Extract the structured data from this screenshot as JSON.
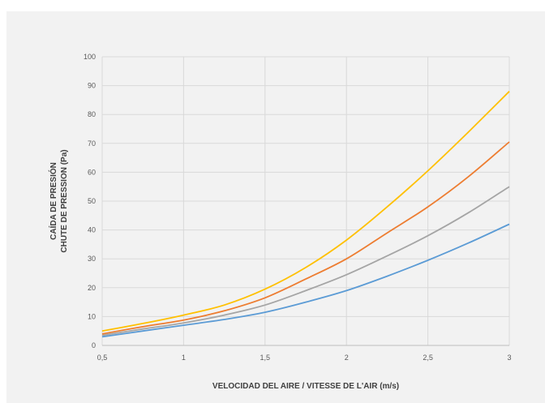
{
  "chart_data": {
    "type": "line",
    "xlabel": "VELOCIDAD DEL AIRE / VITESSE DE L'AIR (m/s)",
    "ylabel_lines": [
      "CAÍDA DE PRESIÓN",
      "CHUTE DE PRESSION (Pa)"
    ],
    "xlim": [
      0.5,
      3
    ],
    "ylim": [
      0,
      100
    ],
    "x_ticks": [
      0.5,
      1,
      1.5,
      2,
      2.5,
      3
    ],
    "x_tick_labels": [
      "0,5",
      "1",
      "1,5",
      "2",
      "2,5",
      "3"
    ],
    "y_ticks": [
      0,
      10,
      20,
      30,
      40,
      50,
      60,
      70,
      80,
      90,
      100
    ],
    "y_tick_labels": [
      "0",
      "10",
      "20",
      "30",
      "40",
      "50",
      "60",
      "70",
      "80",
      "90",
      "100"
    ],
    "grid": true,
    "legend": "none",
    "x": [
      0.5,
      0.75,
      1,
      1.25,
      1.5,
      1.75,
      2,
      2.25,
      2.5,
      2.75,
      3
    ],
    "series": [
      {
        "color": "#5b9bd5",
        "values": [
          3,
          5,
          7,
          9,
          11.5,
          15,
          19,
          24,
          29.5,
          35.5,
          42
        ]
      },
      {
        "color": "#a5a5a5",
        "values": [
          3.5,
          5.7,
          7.8,
          10.5,
          14,
          19,
          24.5,
          31,
          38,
          46,
          55
        ]
      },
      {
        "color": "#ed7d31",
        "values": [
          4,
          6.5,
          8.8,
          12,
          16.5,
          23,
          30,
          39,
          48,
          58.5,
          70.5
        ]
      },
      {
        "color": "#ffc000",
        "values": [
          5,
          7.6,
          10.5,
          14,
          19.5,
          27,
          36.5,
          48,
          60.5,
          74,
          88
        ]
      }
    ]
  }
}
